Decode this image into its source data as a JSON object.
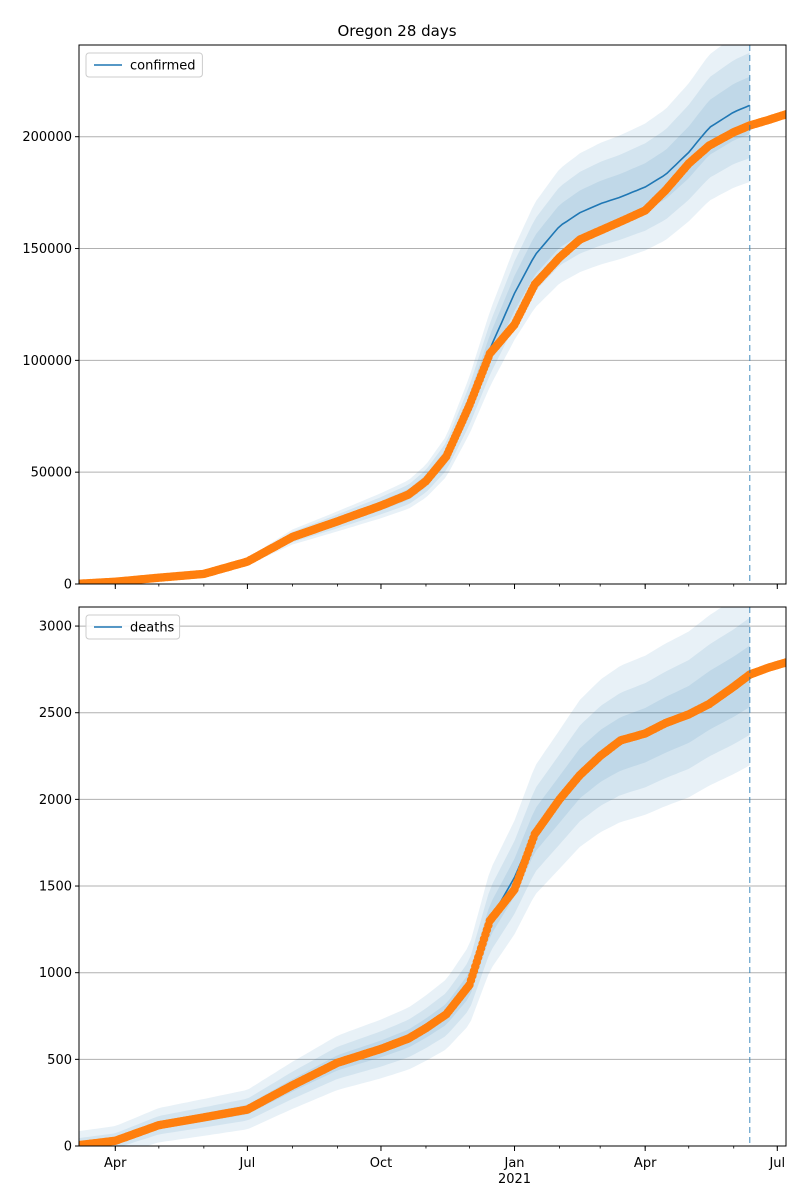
{
  "figure": {
    "title": "Oregon 28 days"
  },
  "colors": {
    "model": "#1f77b4",
    "observed": "#ff7f0e",
    "band": "#1f77b4",
    "grid": "#b0b0b0",
    "forecast_line": "#1f77b4"
  },
  "x_axis": {
    "date_range": [
      "2020-03-07",
      "2021-07-07"
    ],
    "ticks": [
      {
        "date": "2020-04-01",
        "label": "Apr",
        "sublabel": ""
      },
      {
        "date": "2020-07-01",
        "label": "Jul",
        "sublabel": ""
      },
      {
        "date": "2020-10-01",
        "label": "Oct",
        "sublabel": ""
      },
      {
        "date": "2021-01-01",
        "label": "Jan",
        "sublabel": "2021"
      },
      {
        "date": "2021-04-01",
        "label": "Apr",
        "sublabel": ""
      },
      {
        "date": "2021-07-01",
        "label": "Jul",
        "sublabel": ""
      }
    ],
    "forecast_date": "2021-06-12"
  },
  "chart_data": [
    {
      "type": "line",
      "title": "Oregon 28 days",
      "legend": [
        "confirmed"
      ],
      "legend_position": "top-left",
      "ylim": [
        0,
        241000
      ],
      "yticks": [
        0,
        50000,
        100000,
        150000,
        200000
      ],
      "grid": true,
      "series": [
        {
          "name": "confirmed",
          "x": [
            "2020-03-07",
            "2020-04-01",
            "2020-05-01",
            "2020-06-01",
            "2020-07-01",
            "2020-08-01",
            "2020-09-01",
            "2020-10-01",
            "2020-10-20",
            "2020-11-01",
            "2020-11-15",
            "2020-12-01",
            "2020-12-15",
            "2021-01-01",
            "2021-01-15",
            "2021-02-01",
            "2021-02-15",
            "2021-03-01",
            "2021-03-15",
            "2021-04-01",
            "2021-04-15",
            "2021-05-01",
            "2021-05-15",
            "2021-06-01",
            "2021-06-12"
          ],
          "values": [
            100,
            1000,
            2800,
            4500,
            10000,
            21000,
            28000,
            35000,
            40000,
            46000,
            57000,
            80000,
            105000,
            130000,
            147000,
            160000,
            166000,
            170000,
            173000,
            177500,
            183000,
            193000,
            204000,
            211000,
            214000
          ]
        }
      ],
      "observed": {
        "x": [
          "2020-03-07",
          "2020-04-01",
          "2020-05-01",
          "2020-06-01",
          "2020-07-01",
          "2020-08-01",
          "2020-09-01",
          "2020-10-01",
          "2020-10-20",
          "2020-11-01",
          "2020-11-15",
          "2020-12-01",
          "2020-12-15",
          "2021-01-01",
          "2021-01-15",
          "2021-02-01",
          "2021-02-15",
          "2021-03-01",
          "2021-03-15",
          "2021-04-01",
          "2021-04-15",
          "2021-05-01",
          "2021-05-15",
          "2021-06-01",
          "2021-06-12",
          "2021-06-25",
          "2021-07-07"
        ],
        "values": [
          100,
          1000,
          2800,
          4500,
          10000,
          21000,
          28000,
          35000,
          40000,
          46000,
          57000,
          80000,
          103000,
          116000,
          134000,
          146000,
          154000,
          158000,
          162000,
          167000,
          176000,
          188000,
          196000,
          202000,
          205000,
          207500,
          210000
        ]
      },
      "bands": [
        {
          "lo_frac": 0.94,
          "hi_frac": 1.06
        },
        {
          "lo_frac": 0.89,
          "hi_frac": 1.11
        },
        {
          "lo_frac": 0.84,
          "hi_frac": 1.16
        }
      ]
    },
    {
      "type": "line",
      "legend": [
        "deaths"
      ],
      "legend_position": "top-left",
      "ylim": [
        0,
        3110
      ],
      "yticks": [
        0,
        500,
        1000,
        1500,
        2000,
        2500,
        3000
      ],
      "grid": true,
      "series": [
        {
          "name": "deaths",
          "x": [
            "2020-03-07",
            "2020-04-01",
            "2020-05-01",
            "2020-06-01",
            "2020-07-01",
            "2020-08-01",
            "2020-09-01",
            "2020-10-01",
            "2020-10-20",
            "2020-11-01",
            "2020-11-15",
            "2020-12-01",
            "2020-12-15",
            "2021-01-01",
            "2021-01-15",
            "2021-02-01",
            "2021-02-15",
            "2021-03-01",
            "2021-03-15",
            "2021-04-01",
            "2021-04-15",
            "2021-05-01",
            "2021-05-15",
            "2021-06-01",
            "2021-06-12"
          ],
          "values": [
            5,
            30,
            120,
            165,
            210,
            350,
            480,
            560,
            620,
            680,
            760,
            930,
            1300,
            1550,
            1820,
            2000,
            2150,
            2250,
            2320,
            2370,
            2430,
            2490,
            2570,
            2650,
            2710
          ]
        }
      ],
      "observed": {
        "x": [
          "2020-03-07",
          "2020-04-01",
          "2020-05-01",
          "2020-06-01",
          "2020-07-01",
          "2020-08-01",
          "2020-09-01",
          "2020-10-01",
          "2020-10-20",
          "2020-11-01",
          "2020-11-15",
          "2020-12-01",
          "2020-12-15",
          "2021-01-01",
          "2021-01-15",
          "2021-02-01",
          "2021-02-15",
          "2021-03-01",
          "2021-03-15",
          "2021-04-01",
          "2021-04-15",
          "2021-05-01",
          "2021-05-15",
          "2021-06-01",
          "2021-06-12",
          "2021-06-25",
          "2021-07-07"
        ],
        "values": [
          5,
          30,
          120,
          165,
          210,
          350,
          480,
          560,
          620,
          680,
          760,
          930,
          1300,
          1480,
          1800,
          2000,
          2140,
          2250,
          2340,
          2380,
          2440,
          2490,
          2550,
          2650,
          2720,
          2760,
          2790
        ]
      },
      "bands": [
        {
          "lo_frac": 0.94,
          "hi_frac": 1.06,
          "abs": 15
        },
        {
          "lo_frac": 0.89,
          "hi_frac": 1.11,
          "abs": 40
        },
        {
          "lo_frac": 0.84,
          "hi_frac": 1.16,
          "abs": 80
        }
      ]
    }
  ]
}
